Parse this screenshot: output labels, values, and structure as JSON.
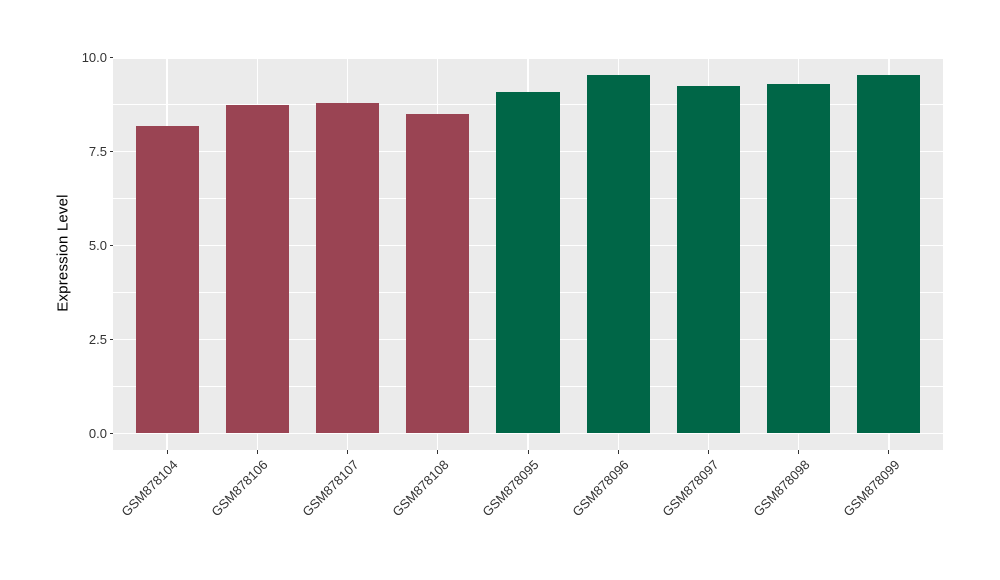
{
  "chart_data": {
    "type": "bar",
    "title": "",
    "xlabel": "",
    "ylabel": "Expression Level",
    "categories": [
      "GSM878104",
      "GSM878106",
      "GSM878107",
      "GSM878108",
      "GSM878095",
      "GSM878096",
      "GSM878097",
      "GSM878098",
      "GSM878099"
    ],
    "values": [
      8.2,
      8.75,
      8.8,
      8.5,
      9.1,
      9.55,
      9.25,
      9.3,
      9.55
    ],
    "bar_colors": [
      "#9A4453",
      "#9A4453",
      "#9A4453",
      "#9A4453",
      "#006647",
      "#006647",
      "#006647",
      "#006647",
      "#006647"
    ],
    "ylim": [
      0,
      10
    ],
    "yticks": [
      0,
      2.5,
      5,
      7.5,
      10
    ],
    "ytick_labels": [
      "0.0",
      "2.5",
      "5.0",
      "7.5",
      "10.0"
    ],
    "yticks_minor": [
      1.25,
      3.75,
      6.25,
      8.75
    ],
    "grid": true,
    "legend_position": "none",
    "style": {
      "panel_bg": "#EBEBEB",
      "grid_color": "#FFFFFF",
      "axis_text_color": "#333333",
      "axis_title_color": "#000000",
      "tick_color": "#333333",
      "group1_color": "#9A4453",
      "group2_color": "#006647"
    }
  }
}
